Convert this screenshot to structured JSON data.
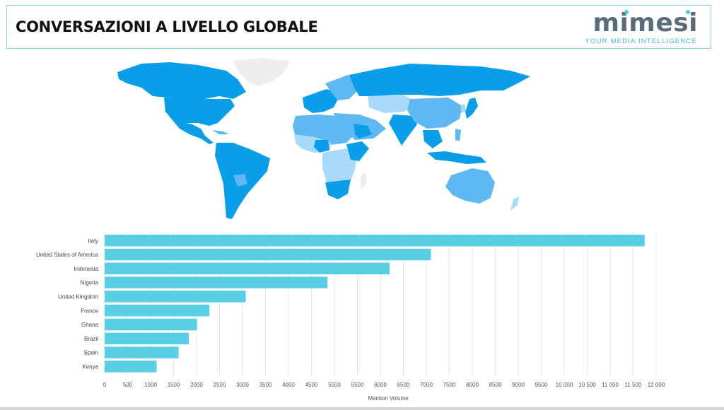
{
  "header": {
    "title": "CONVERSAZIONI A LIVELLO GLOBALE",
    "logo_word": "mimesi",
    "logo_tagline": "YOUR MEDIA INTELLIGENCE"
  },
  "colors": {
    "bar": "#59cfe6",
    "map_high": "#0a9ee8",
    "map_mid": "#5fb8f2",
    "map_low": "#aadaf9",
    "map_none": "#eeeeee",
    "logo_accent": "#3fd0d4"
  },
  "chart_data": {
    "type": "bar",
    "orientation": "horizontal",
    "categories": [
      "Italy",
      "United States of America",
      "Indonesia",
      "Nigeria",
      "United Kingdom",
      "France",
      "Ghana",
      "Brazil",
      "Spain",
      "Kenya"
    ],
    "values": [
      11750,
      7100,
      6200,
      4850,
      3070,
      2280,
      2010,
      1830,
      1610,
      1130
    ],
    "xlabel": "Mention Volume",
    "xlim": [
      0,
      12000
    ],
    "x_ticks": [
      "0",
      "500",
      "1000",
      "1500",
      "2000",
      "2500",
      "3000",
      "3500",
      "4000",
      "4500",
      "5000",
      "5500",
      "6000",
      "6500",
      "7000",
      "7500",
      "8000",
      "8500",
      "9000",
      "9500",
      "10 000",
      "10 500",
      "11 000",
      "11 500",
      "12 000"
    ],
    "grid": true
  }
}
